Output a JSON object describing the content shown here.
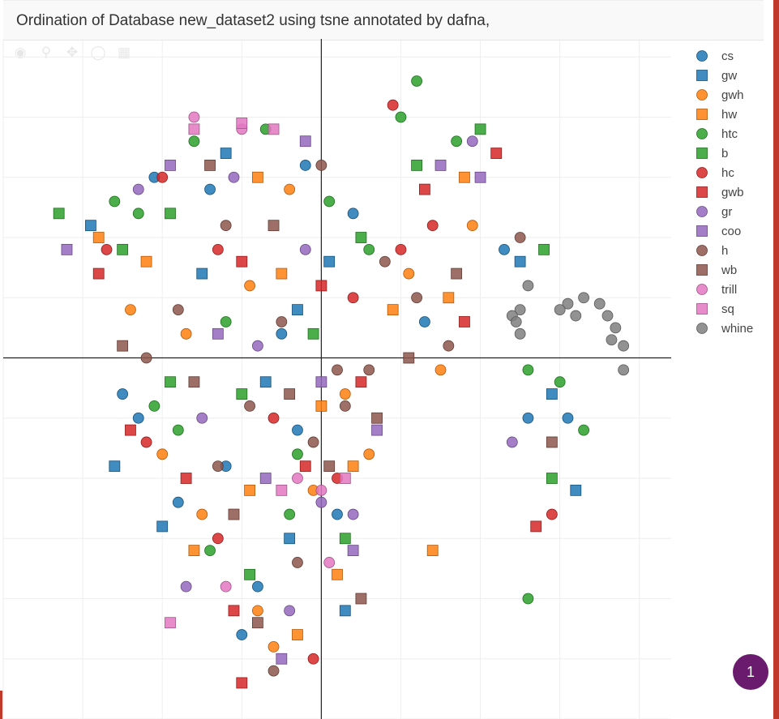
{
  "header": {
    "title": "Ordination of Database new_dataset2 using tsne annotated by dafna,"
  },
  "modebar": {
    "icons": [
      "camera-icon",
      "zoom-icon",
      "pan-icon",
      "lasso-icon",
      "box-select-icon"
    ]
  },
  "chart_data": {
    "type": "scatter",
    "title": "Ordination of Database new_dataset2 using tsne annotated by dafna,",
    "xlabel": "",
    "ylabel": "",
    "xlim": [
      -4,
      4.4
    ],
    "ylim": [
      -3,
      2.65
    ],
    "grid": true,
    "zero_lines": true,
    "tick_labels_visible": false,
    "legend_position": "right",
    "series": [
      {
        "name": "cs",
        "color": "#1f77b4",
        "marker": "circle",
        "points": [
          [
            -2.5,
            -0.3
          ],
          [
            -2.3,
            -0.5
          ],
          [
            -1.8,
            -1.2
          ],
          [
            -1.2,
            -0.9
          ],
          [
            -0.8,
            -1.9
          ],
          [
            -0.3,
            -0.6
          ],
          [
            0.2,
            -1.3
          ],
          [
            -2.1,
            1.5
          ],
          [
            -1.4,
            1.4
          ],
          [
            -0.2,
            1.6
          ],
          [
            0.4,
            1.2
          ],
          [
            1.3,
            0.3
          ],
          [
            2.3,
            0.9
          ],
          [
            2.6,
            -0.5
          ],
          [
            3.1,
            -0.5
          ],
          [
            -1.0,
            -2.3
          ],
          [
            -0.5,
            0.2
          ]
        ]
      },
      {
        "name": "gw",
        "color": "#1f77b4",
        "marker": "square",
        "points": [
          [
            -2.9,
            1.1
          ],
          [
            -2.6,
            -0.9
          ],
          [
            -2.0,
            -1.4
          ],
          [
            -1.5,
            0.7
          ],
          [
            -0.7,
            -0.2
          ],
          [
            0.1,
            0.8
          ],
          [
            -1.2,
            1.7
          ],
          [
            -0.4,
            -1.5
          ],
          [
            2.5,
            0.8
          ],
          [
            3.2,
            -1.1
          ],
          [
            2.9,
            -0.3
          ],
          [
            0.3,
            -2.1
          ],
          [
            -0.3,
            0.4
          ]
        ]
      },
      {
        "name": "gwh",
        "color": "#ff7f0e",
        "marker": "circle",
        "points": [
          [
            -2.4,
            0.4
          ],
          [
            -2.0,
            -0.8
          ],
          [
            -1.5,
            -1.3
          ],
          [
            -0.9,
            0.6
          ],
          [
            -0.4,
            1.4
          ],
          [
            -0.1,
            -1.1
          ],
          [
            0.3,
            -0.3
          ],
          [
            1.1,
            0.7
          ],
          [
            1.5,
            -0.1
          ],
          [
            1.9,
            1.1
          ],
          [
            -0.8,
            -2.1
          ],
          [
            -0.6,
            -2.4
          ],
          [
            0.6,
            -0.8
          ],
          [
            -1.7,
            0.2
          ]
        ]
      },
      {
        "name": "hw",
        "color": "#ff7f0e",
        "marker": "square",
        "points": [
          [
            -2.8,
            1.0
          ],
          [
            -2.2,
            0.8
          ],
          [
            -1.6,
            -1.6
          ],
          [
            -0.9,
            -1.1
          ],
          [
            -0.5,
            0.7
          ],
          [
            0.0,
            -0.4
          ],
          [
            0.4,
            -0.9
          ],
          [
            0.9,
            0.4
          ],
          [
            1.6,
            0.5
          ],
          [
            1.8,
            1.5
          ],
          [
            -0.3,
            -2.3
          ],
          [
            0.2,
            -1.8
          ],
          [
            1.4,
            -1.6
          ],
          [
            -0.8,
            1.5
          ]
        ]
      },
      {
        "name": "htc",
        "color": "#2ca02c",
        "marker": "circle",
        "points": [
          [
            -2.6,
            1.3
          ],
          [
            -2.3,
            1.2
          ],
          [
            -2.1,
            -0.4
          ],
          [
            -1.6,
            1.8
          ],
          [
            -1.2,
            0.3
          ],
          [
            -0.7,
            1.9
          ],
          [
            -0.3,
            -0.8
          ],
          [
            0.1,
            1.3
          ],
          [
            -1.8,
            -0.6
          ],
          [
            1.0,
            2.0
          ],
          [
            1.2,
            2.3
          ],
          [
            1.7,
            1.8
          ],
          [
            2.6,
            -0.1
          ],
          [
            3.0,
            -0.2
          ],
          [
            3.3,
            -0.6
          ],
          [
            2.6,
            -2.0
          ],
          [
            -0.4,
            -1.3
          ],
          [
            0.6,
            0.9
          ],
          [
            -1.4,
            -1.6
          ]
        ]
      },
      {
        "name": "b",
        "color": "#2ca02c",
        "marker": "square",
        "points": [
          [
            -3.3,
            1.2
          ],
          [
            -2.5,
            0.9
          ],
          [
            -1.9,
            1.2
          ],
          [
            -1.0,
            -0.3
          ],
          [
            -0.1,
            0.2
          ],
          [
            0.5,
            1.0
          ],
          [
            1.2,
            1.6
          ],
          [
            2.0,
            1.9
          ],
          [
            2.8,
            0.9
          ],
          [
            2.9,
            -1.0
          ],
          [
            -0.9,
            -1.8
          ],
          [
            -1.9,
            -0.2
          ],
          [
            0.3,
            -1.5
          ]
        ]
      },
      {
        "name": "hc",
        "color": "#d62728",
        "marker": "circle",
        "points": [
          [
            -2.7,
            0.9
          ],
          [
            -2.0,
            1.5
          ],
          [
            -1.3,
            0.9
          ],
          [
            -0.6,
            -0.5
          ],
          [
            0.2,
            -1.0
          ],
          [
            1.0,
            0.9
          ],
          [
            0.9,
            2.1
          ],
          [
            1.4,
            1.1
          ],
          [
            2.9,
            -1.3
          ],
          [
            -1.3,
            -1.5
          ],
          [
            -0.1,
            -2.5
          ],
          [
            0.4,
            0.5
          ],
          [
            -2.2,
            -0.7
          ]
        ]
      },
      {
        "name": "gwb",
        "color": "#d62728",
        "marker": "square",
        "points": [
          [
            -2.8,
            0.7
          ],
          [
            -2.4,
            -0.6
          ],
          [
            -1.7,
            -1.0
          ],
          [
            -1.0,
            0.8
          ],
          [
            -0.2,
            -0.9
          ],
          [
            0.5,
            -0.2
          ],
          [
            1.3,
            1.4
          ],
          [
            1.8,
            0.3
          ],
          [
            2.7,
            -1.4
          ],
          [
            -1.1,
            -2.1
          ],
          [
            -1.0,
            -2.7
          ],
          [
            0.0,
            0.6
          ],
          [
            2.2,
            1.7
          ]
        ]
      },
      {
        "name": "gr",
        "color": "#9467bd",
        "marker": "circle",
        "points": [
          [
            -2.3,
            1.4
          ],
          [
            -1.5,
            -0.5
          ],
          [
            -0.8,
            0.1
          ],
          [
            -0.2,
            0.9
          ],
          [
            0.4,
            -1.3
          ],
          [
            -1.1,
            1.5
          ],
          [
            -1.7,
            -1.9
          ],
          [
            -0.4,
            -2.1
          ],
          [
            2.4,
            -0.7
          ],
          [
            1.9,
            1.8
          ],
          [
            0.0,
            -1.2
          ]
        ]
      },
      {
        "name": "coo",
        "color": "#9467bd",
        "marker": "square",
        "points": [
          [
            -3.2,
            0.9
          ],
          [
            -1.9,
            1.6
          ],
          [
            -1.3,
            0.2
          ],
          [
            -0.7,
            -1.0
          ],
          [
            0.0,
            -0.2
          ],
          [
            0.7,
            -0.6
          ],
          [
            1.5,
            1.6
          ],
          [
            2.0,
            1.5
          ],
          [
            -0.5,
            -2.5
          ],
          [
            -0.2,
            1.8
          ],
          [
            0.4,
            -1.6
          ]
        ]
      },
      {
        "name": "h",
        "color": "#8c564b",
        "marker": "circle",
        "points": [
          [
            -2.2,
            0.0
          ],
          [
            -1.8,
            0.4
          ],
          [
            -1.3,
            -0.9
          ],
          [
            -0.9,
            -0.4
          ],
          [
            -0.5,
            0.3
          ],
          [
            -0.1,
            -0.7
          ],
          [
            0.3,
            -0.4
          ],
          [
            0.6,
            -0.1
          ],
          [
            1.2,
            0.5
          ],
          [
            1.6,
            0.1
          ],
          [
            2.5,
            1.0
          ],
          [
            0.0,
            1.6
          ],
          [
            -1.2,
            1.1
          ],
          [
            -0.3,
            -1.7
          ],
          [
            0.8,
            0.8
          ],
          [
            -0.6,
            -2.6
          ],
          [
            0.2,
            -0.1
          ]
        ]
      },
      {
        "name": "wb",
        "color": "#8c564b",
        "marker": "square",
        "points": [
          [
            -2.5,
            0.1
          ],
          [
            -1.6,
            -0.2
          ],
          [
            -1.1,
            -1.3
          ],
          [
            -0.4,
            -0.3
          ],
          [
            0.1,
            -0.9
          ],
          [
            0.7,
            -0.5
          ],
          [
            1.1,
            0.0
          ],
          [
            1.7,
            0.7
          ],
          [
            -1.4,
            1.6
          ],
          [
            -0.6,
            1.1
          ],
          [
            0.5,
            -2.0
          ],
          [
            -0.8,
            -2.2
          ],
          [
            2.9,
            -0.7
          ]
        ]
      },
      {
        "name": "trill",
        "color": "#e377c2",
        "marker": "circle",
        "points": [
          [
            -1.6,
            2.0
          ],
          [
            -1.0,
            1.9
          ],
          [
            -0.3,
            -1.0
          ],
          [
            0.0,
            -1.1
          ],
          [
            -1.2,
            -1.9
          ],
          [
            0.1,
            -1.7
          ]
        ]
      },
      {
        "name": "sq",
        "color": "#e377c2",
        "marker": "square",
        "points": [
          [
            -1.6,
            1.9
          ],
          [
            -1.0,
            1.95
          ],
          [
            -0.6,
            1.9
          ],
          [
            -1.9,
            -2.2
          ],
          [
            -0.5,
            -1.1
          ],
          [
            0.3,
            -1.0
          ]
        ]
      },
      {
        "name": "whine",
        "color": "#7f7f7f",
        "marker": "circle",
        "points": [
          [
            2.5,
            0.4
          ],
          [
            2.6,
            0.6
          ],
          [
            2.5,
            0.2
          ],
          [
            2.4,
            0.35
          ],
          [
            3.1,
            0.45
          ],
          [
            3.3,
            0.5
          ],
          [
            3.5,
            0.45
          ],
          [
            3.6,
            0.35
          ],
          [
            3.7,
            0.25
          ],
          [
            3.8,
            0.1
          ],
          [
            3.8,
            -0.1
          ],
          [
            3.65,
            0.15
          ],
          [
            3.2,
            0.35
          ],
          [
            3.0,
            0.4
          ],
          [
            2.45,
            0.3
          ]
        ]
      }
    ]
  },
  "badge": {
    "count": "1"
  }
}
